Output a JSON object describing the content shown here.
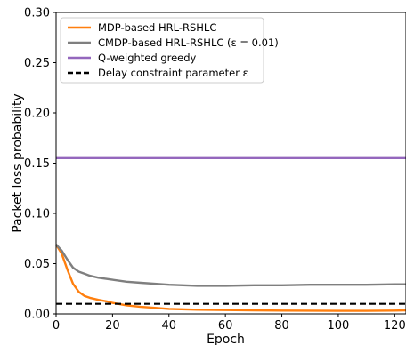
{
  "chart_data": {
    "type": "line",
    "xlabel": "Epoch",
    "ylabel": "Packet loss probability",
    "xlim": [
      0,
      124
    ],
    "ylim": [
      0,
      0.3
    ],
    "xticks": [
      0,
      20,
      40,
      60,
      80,
      100,
      120
    ],
    "yticks": [
      "0.00",
      "0.05",
      "0.10",
      "0.15",
      "0.20",
      "0.25",
      "0.30"
    ],
    "grid": false,
    "legend_position": "top-left",
    "series": [
      {
        "name": "MDP-based HRL-RSHLC",
        "color": "#ff7f0e",
        "style": "solid",
        "x": [
          0,
          2,
          4,
          6,
          8,
          10,
          12,
          15,
          18,
          20,
          25,
          30,
          35,
          40,
          50,
          60,
          70,
          80,
          90,
          100,
          110,
          120,
          124
        ],
        "y": [
          0.069,
          0.06,
          0.044,
          0.03,
          0.022,
          0.018,
          0.016,
          0.014,
          0.0125,
          0.011,
          0.0085,
          0.007,
          0.006,
          0.005,
          0.0042,
          0.0038,
          0.0035,
          0.0033,
          0.0032,
          0.003,
          0.003,
          0.0033,
          0.0035
        ]
      },
      {
        "name": "CMDP-based HRL-RSHLC (ε = 0.01)",
        "color": "#7f7f7f",
        "style": "solid",
        "x": [
          0,
          2,
          4,
          6,
          8,
          10,
          12,
          15,
          20,
          25,
          30,
          40,
          50,
          60,
          70,
          80,
          90,
          100,
          110,
          120,
          124
        ],
        "y": [
          0.069,
          0.063,
          0.054,
          0.046,
          0.042,
          0.04,
          0.038,
          0.036,
          0.034,
          0.032,
          0.031,
          0.029,
          0.028,
          0.028,
          0.0285,
          0.0285,
          0.029,
          0.029,
          0.029,
          0.0295,
          0.0295
        ]
      },
      {
        "name": "Q-weighted greedy",
        "color": "#9467bd",
        "style": "solid",
        "x": [
          0,
          124
        ],
        "y": [
          0.155,
          0.155
        ]
      },
      {
        "name": "Delay constraint parameter ε",
        "color": "#000000",
        "style": "dashed",
        "x": [
          0,
          124
        ],
        "y": [
          0.01,
          0.01
        ]
      }
    ]
  }
}
